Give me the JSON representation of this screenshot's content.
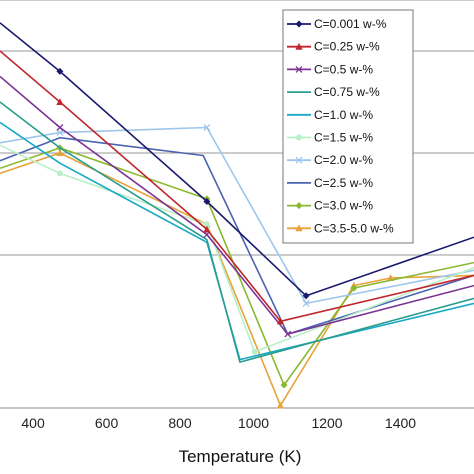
{
  "chart_data": {
    "type": "line",
    "xlabel": "Temperature (K)",
    "ylabel": "",
    "title": "",
    "xlim": [
      310,
      1600
    ],
    "ylim": [
      0,
      8
    ],
    "xticks": [
      "400",
      "600",
      "800",
      "1000",
      "1200",
      "1400"
    ],
    "xtick_values": [
      400,
      600,
      800,
      1000,
      1200,
      1400
    ],
    "gridlines_y": [
      3,
      5,
      7,
      8
    ],
    "grid": "horizontal",
    "legend_position": "top-right",
    "series": [
      {
        "name": "C=0.001 w-%",
        "color": "#1a1a6e",
        "marker": "diamond",
        "x": [
          310,
          473,
          873,
          1143,
          1600
        ],
        "y": [
          7.55,
          6.6,
          4.05,
          2.2,
          3.35
        ]
      },
      {
        "name": "C=0.25 w-%",
        "color": "#c0272d",
        "marker": "triangle",
        "x": [
          310,
          473,
          873,
          1073,
          1600
        ],
        "y": [
          7.0,
          6.0,
          3.5,
          1.7,
          2.6
        ]
      },
      {
        "name": "C=0.5 w-%",
        "color": "#7b3294",
        "marker": "x",
        "x": [
          310,
          473,
          873,
          1093,
          1600
        ],
        "y": [
          6.5,
          5.5,
          3.4,
          1.45,
          2.4
        ]
      },
      {
        "name": "C=0.75 w-%",
        "color": "#2a9d8f",
        "marker": "none",
        "x": [
          310,
          473,
          873,
          963,
          1600
        ],
        "y": [
          6.0,
          5.1,
          3.3,
          0.9,
          2.15
        ]
      },
      {
        "name": "C=1.0 w-%",
        "color": "#17a9c6",
        "marker": "none",
        "x": [
          310,
          473,
          873,
          963,
          1600
        ],
        "y": [
          5.6,
          4.8,
          3.25,
          0.95,
          2.05
        ]
      },
      {
        "name": "C=1.5 w-%",
        "color": "#b8f0c6",
        "marker": "circle",
        "x": [
          310,
          473,
          873,
          1003,
          1600
        ],
        "y": [
          5.15,
          4.6,
          3.6,
          1.1,
          2.75
        ]
      },
      {
        "name": "C=2.0 w-%",
        "color": "#9ec6ec",
        "marker": "x",
        "x": [
          310,
          473,
          873,
          1143,
          1600
        ],
        "y": [
          5.2,
          5.4,
          5.5,
          2.05,
          2.7
        ]
      },
      {
        "name": "C=2.5 w-%",
        "color": "#4a64b0",
        "marker": "none",
        "x": [
          310,
          473,
          863,
          1093,
          1600
        ],
        "y": [
          4.85,
          5.3,
          4.95,
          1.45,
          2.6
        ]
      },
      {
        "name": "C=3.0 w-%",
        "color": "#8ab82e",
        "marker": "diamond",
        "x": [
          310,
          473,
          873,
          1083,
          1273,
          1600
        ],
        "y": [
          4.7,
          5.1,
          4.1,
          0.45,
          2.35,
          2.85
        ]
      },
      {
        "name": "C=3.5-5.0 w-%",
        "color": "#e8a23a",
        "marker": "triangle",
        "x": [
          310,
          473,
          873,
          1073,
          1273,
          1373,
          1600
        ],
        "y": [
          4.6,
          5.0,
          3.6,
          0.05,
          2.4,
          2.55,
          2.6
        ]
      }
    ]
  }
}
